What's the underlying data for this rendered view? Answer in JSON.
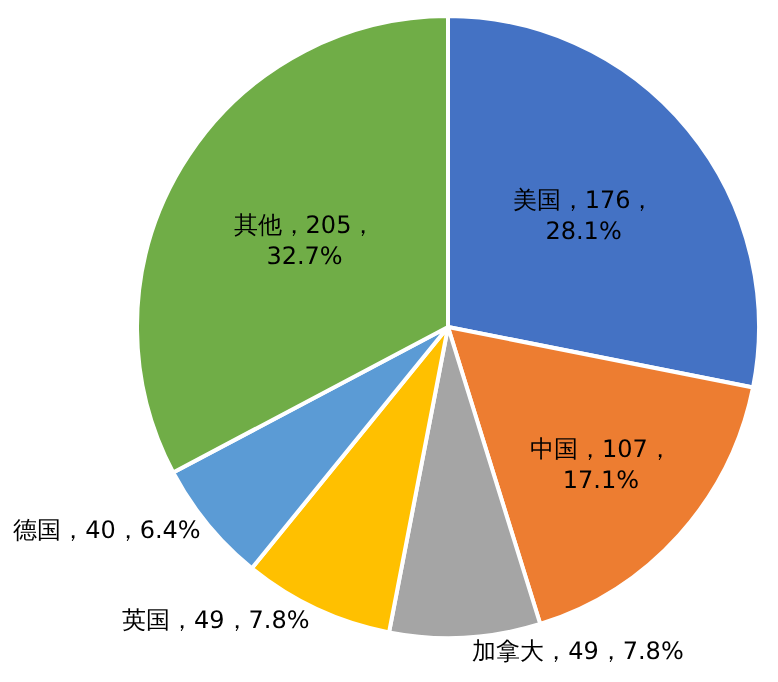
{
  "chart_data": {
    "type": "pie",
    "categories": [
      "美国",
      "中国",
      "加拿大",
      "英国",
      "德国",
      "其他"
    ],
    "values": [
      176,
      107,
      49,
      49,
      40,
      205
    ],
    "colors": [
      "#4472c4",
      "#ed7d31",
      "#a5a5a5",
      "#ffc000",
      "#5b9bd5",
      "#70ad47"
    ],
    "value_labels": [
      "176，\n28.1%",
      "107，\n17.1%",
      "49，7.8%",
      "49，7.8%",
      "40，6.4%",
      "205，\n32.7%"
    ],
    "legend": false
  }
}
